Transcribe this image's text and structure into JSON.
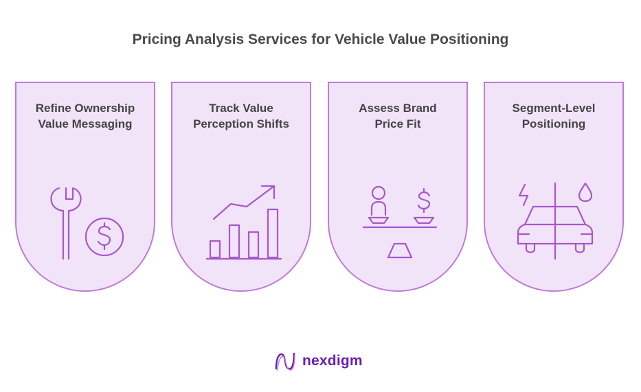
{
  "title": "Pricing Analysis Services for Vehicle Value Positioning",
  "cards": [
    {
      "line1": "Refine Ownership",
      "line2": "Value Messaging",
      "icon": "wrench-dollar-icon"
    },
    {
      "line1": "Track Value",
      "line2": "Perception Shifts",
      "icon": "growth-chart-icon"
    },
    {
      "line1": "Assess Brand",
      "line2": "Price Fit",
      "icon": "balance-scale-icon"
    },
    {
      "line1": "Segment-Level",
      "line2": "Positioning",
      "icon": "split-car-icon"
    }
  ],
  "brand": {
    "name": "nexdigm"
  },
  "colors": {
    "card_fill": "#f1e3f8",
    "card_border": "#c07ad8",
    "icon_stroke": "#a857c8",
    "brand": "#6a1fb0"
  }
}
